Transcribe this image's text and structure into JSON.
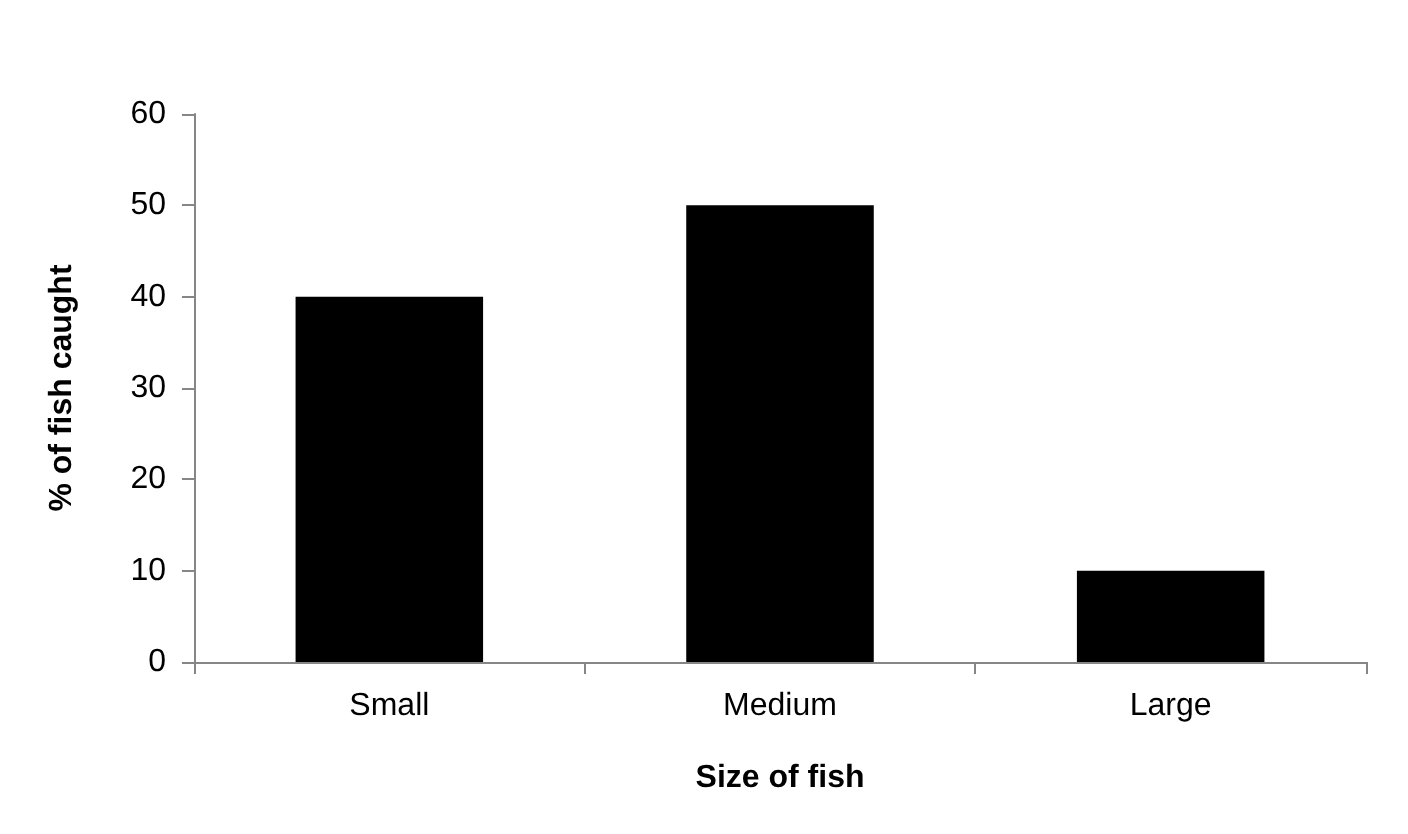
{
  "chart_data": {
    "type": "bar",
    "xlabel": "Size of fish",
    "ylabel": "% of fish caught",
    "categories": [
      "Small",
      "Medium",
      "Large"
    ],
    "values": [
      40,
      50,
      10
    ],
    "color": "#000000",
    "ylim": [
      0,
      60
    ],
    "yticks": [
      0,
      10,
      20,
      30,
      40,
      50,
      60
    ],
    "grid": false
  }
}
